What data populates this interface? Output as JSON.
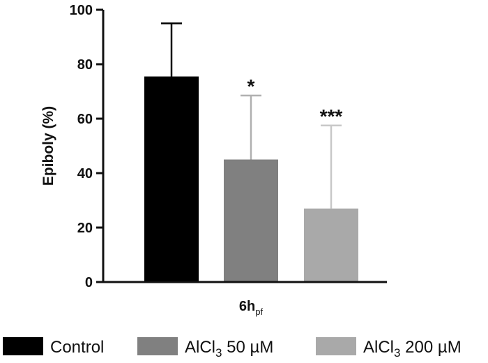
{
  "chart_data": {
    "type": "bar",
    "title": "",
    "ylabel": "Epiboly (%)",
    "xlabel": "",
    "ylim": [
      0,
      100
    ],
    "yticks": [
      0,
      20,
      40,
      60,
      80,
      100
    ],
    "x_category": {
      "main": "6h",
      "sub": "pf"
    },
    "grid": false,
    "legend_position": "bottom",
    "series": [
      {
        "name": "Control",
        "name_main": "Control",
        "name_sub": "",
        "name_tail": "",
        "value": 75.5,
        "error": 19.5,
        "significance": "",
        "color": "#000000",
        "error_color": "#000000"
      },
      {
        "name": "AlCl3 50 µM",
        "name_main": "AlCl",
        "name_sub": "3",
        "name_tail": " 50 µM",
        "value": 45,
        "error": 23.5,
        "significance": "*",
        "color": "#808080",
        "error_color": "#b0b0b0"
      },
      {
        "name": "AlCl3 200 µM",
        "name_main": "AlCl",
        "name_sub": "3",
        "name_tail": " 200 µM",
        "value": 27,
        "error": 30.5,
        "significance": "***",
        "color": "#a9a9a9",
        "error_color": "#c8c8c8"
      }
    ]
  }
}
